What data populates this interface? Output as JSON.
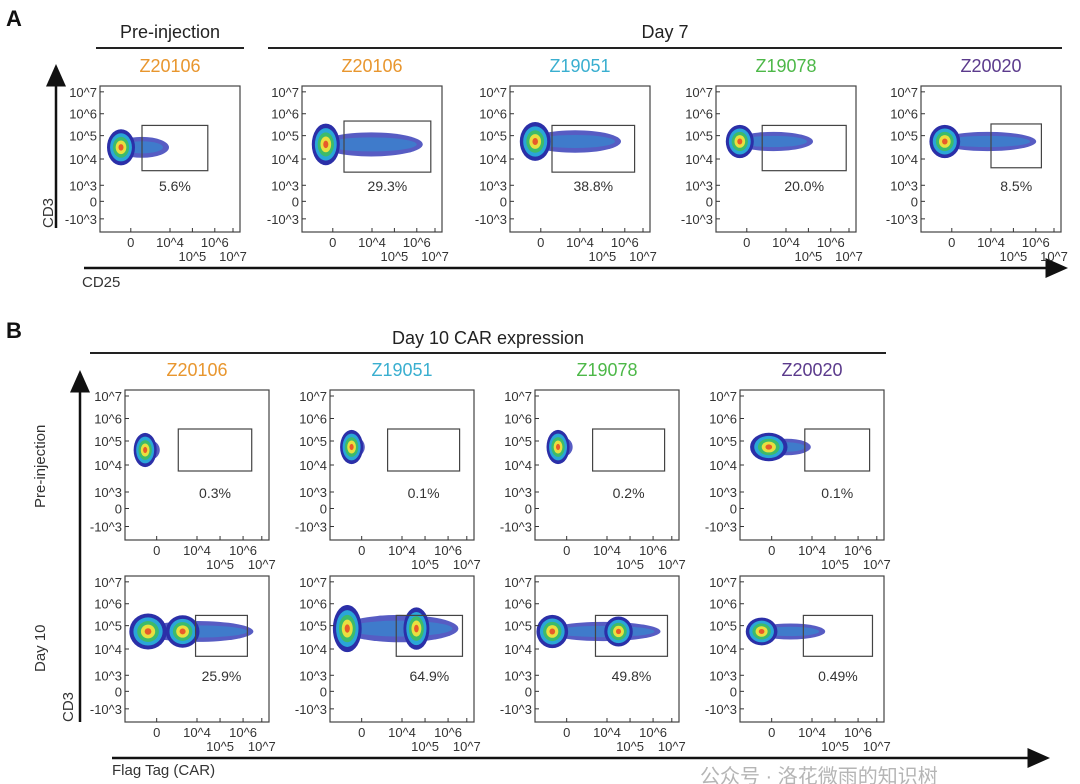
{
  "panel_a": {
    "letter": "A",
    "group_headers": [
      "Pre-injection",
      "Day 7"
    ],
    "y_axis_label": "CD3",
    "x_axis_label": "CD25"
  },
  "panel_b": {
    "letter": "B",
    "header": "Day 10 CAR expression",
    "row_labels": [
      "Pre-injection",
      "Day 10"
    ],
    "y_axis_label": "CD3",
    "x_axis_label": "Flag Tag (CAR)"
  },
  "sample_colors": {
    "Z20106": "#E8962E",
    "Z19051": "#3AAFD0",
    "Z19078": "#4DB848",
    "Z20020": "#5B3A8C"
  },
  "watermark": "公众号 · 洛花微雨的知识树",
  "chart_data": [
    {
      "type": "scatter",
      "panel": "A",
      "title": "",
      "xlabel": "CD25",
      "ylabel": "CD3",
      "x_ticks": [
        "0",
        "10^4",
        "10^5",
        "10^6",
        "10^7"
      ],
      "y_ticks": [
        "10^7",
        "10^6",
        "10^5",
        "10^4",
        "10^3",
        "0",
        "-10^3"
      ],
      "plots": [
        {
          "group": "Pre-injection",
          "sample": "Z20106",
          "gate_percent": "5.6%"
        },
        {
          "group": "Day 7",
          "sample": "Z20106",
          "gate_percent": "29.3%"
        },
        {
          "group": "Day 7",
          "sample": "Z19051",
          "gate_percent": "38.8%"
        },
        {
          "group": "Day 7",
          "sample": "Z19078",
          "gate_percent": "20.0%"
        },
        {
          "group": "Day 7",
          "sample": "Z20020",
          "gate_percent": "8.5%"
        }
      ]
    },
    {
      "type": "scatter",
      "panel": "B",
      "title": "Day 10 CAR expression",
      "xlabel": "Flag Tag (CAR)",
      "ylabel": "CD3",
      "x_ticks": [
        "0",
        "10^4",
        "10^5",
        "10^6",
        "10^7"
      ],
      "y_ticks": [
        "10^7",
        "10^6",
        "10^5",
        "10^4",
        "10^3",
        "0",
        "-10^3"
      ],
      "plots": [
        {
          "row": "Pre-injection",
          "sample": "Z20106",
          "gate_percent": "0.3%"
        },
        {
          "row": "Pre-injection",
          "sample": "Z19051",
          "gate_percent": "0.1%"
        },
        {
          "row": "Pre-injection",
          "sample": "Z19078",
          "gate_percent": "0.2%"
        },
        {
          "row": "Pre-injection",
          "sample": "Z20020",
          "gate_percent": "0.1%"
        },
        {
          "row": "Day 10",
          "sample": "Z20106",
          "gate_percent": "25.9%"
        },
        {
          "row": "Day 10",
          "sample": "Z19051",
          "gate_percent": "64.9%"
        },
        {
          "row": "Day 10",
          "sample": "Z19078",
          "gate_percent": "49.8%"
        },
        {
          "row": "Day 10",
          "sample": "Z20020",
          "gate_percent": "0.49%"
        }
      ]
    }
  ]
}
